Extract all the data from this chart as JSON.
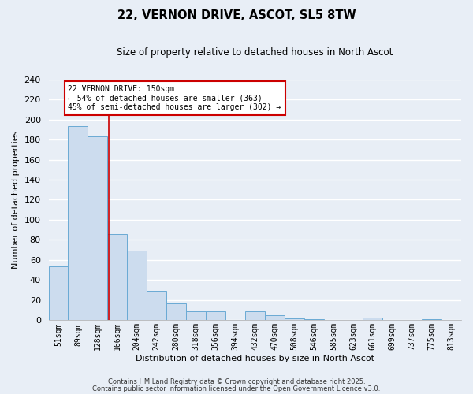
{
  "title": "22, VERNON DRIVE, ASCOT, SL5 8TW",
  "subtitle": "Size of property relative to detached houses in North Ascot",
  "xlabel": "Distribution of detached houses by size in North Ascot",
  "ylabel": "Number of detached properties",
  "bin_labels": [
    "51sqm",
    "89sqm",
    "128sqm",
    "166sqm",
    "204sqm",
    "242sqm",
    "280sqm",
    "318sqm",
    "356sqm",
    "394sqm",
    "432sqm",
    "470sqm",
    "508sqm",
    "546sqm",
    "585sqm",
    "623sqm",
    "661sqm",
    "699sqm",
    "737sqm",
    "775sqm",
    "813sqm"
  ],
  "bar_values": [
    54,
    193,
    183,
    86,
    69,
    29,
    17,
    9,
    9,
    0,
    9,
    5,
    2,
    1,
    0,
    0,
    3,
    0,
    0,
    1,
    0
  ],
  "bar_color": "#ccdcee",
  "bar_edge_color": "#6aaad4",
  "ylim": [
    0,
    240
  ],
  "yticks": [
    0,
    20,
    40,
    60,
    80,
    100,
    120,
    140,
    160,
    180,
    200,
    220,
    240
  ],
  "annotation_title": "22 VERNON DRIVE: 150sqm",
  "annotation_line1": "← 54% of detached houses are smaller (363)",
  "annotation_line2": "45% of semi-detached houses are larger (302) →",
  "vline_color": "#cc0000",
  "annotation_box_color": "#ffffff",
  "annotation_box_edge": "#cc0000",
  "footer1": "Contains HM Land Registry data © Crown copyright and database right 2025.",
  "footer2": "Contains public sector information licensed under the Open Government Licence v3.0.",
  "background_color": "#e8eef6",
  "grid_color": "#ffffff"
}
